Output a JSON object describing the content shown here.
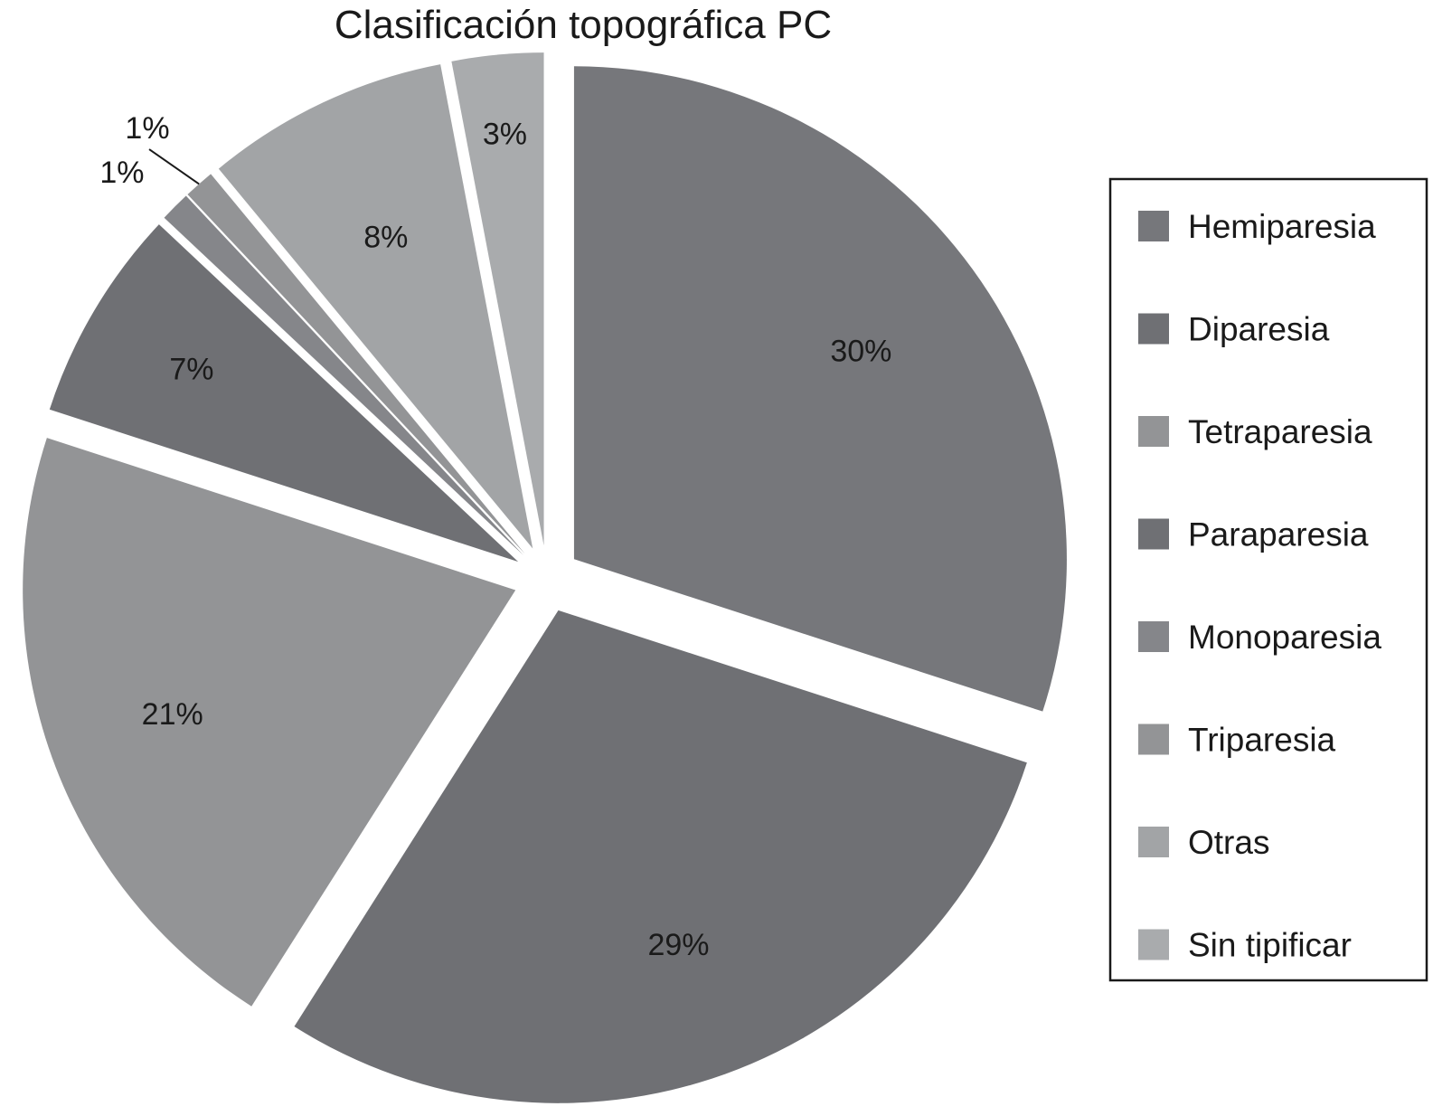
{
  "chart_data": {
    "type": "pie",
    "title": "Clasificación topográfica PC",
    "categories": [
      "Hemiparesia",
      "Diparesia",
      "Tetraparesia",
      "Paraparesia",
      "Monoparesia",
      "Triparesia",
      "Otras",
      "Sin tipificar"
    ],
    "values": [
      30,
      29,
      21,
      7,
      1,
      1,
      8,
      3
    ],
    "value_labels": [
      "30%",
      "29%",
      "21%",
      "7%",
      "1%",
      "1%",
      "8%",
      "3%"
    ],
    "colors": [
      "#76777b",
      "#6f7074",
      "#939496",
      "#6f7074",
      "#85868a",
      "#939496",
      "#a2a4a6",
      "#a9abad"
    ],
    "start_angle": "12 o'clock",
    "direction": "clockwise",
    "exploded": true,
    "legend_position": "right"
  }
}
